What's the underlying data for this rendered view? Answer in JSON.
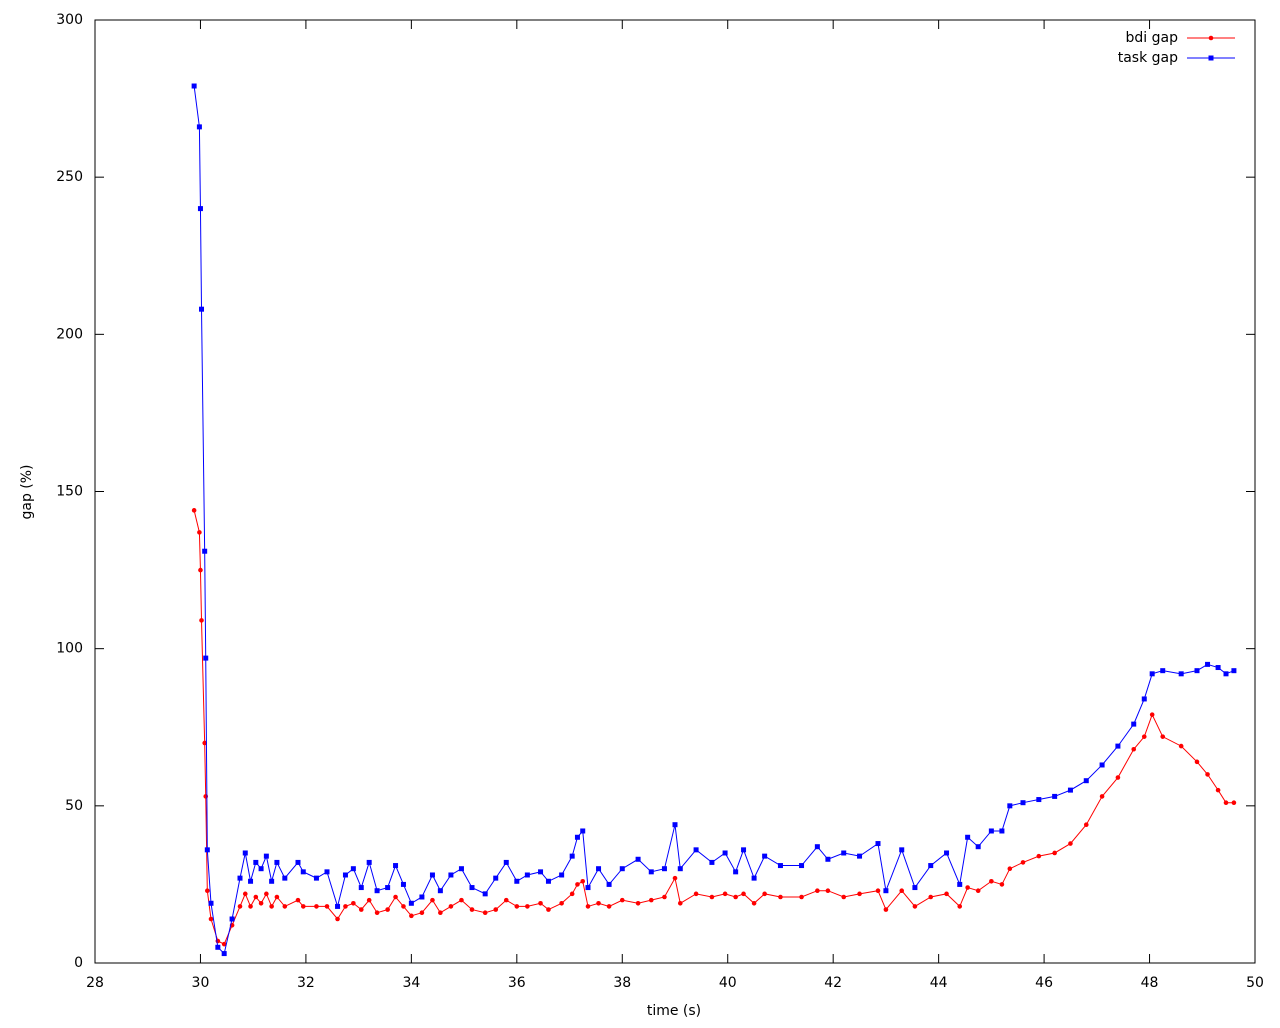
{
  "chart_data": {
    "type": "line",
    "xlabel": "time (s)",
    "ylabel": "gap (%)",
    "x": [
      29.88,
      29.98,
      30.0,
      30.02,
      30.08,
      30.1,
      30.13,
      30.2,
      30.33,
      30.45,
      30.6,
      30.75,
      30.85,
      30.95,
      31.05,
      31.15,
      31.25,
      31.35,
      31.45,
      31.6,
      31.85,
      31.95,
      32.2,
      32.4,
      32.6,
      32.75,
      32.9,
      33.05,
      33.2,
      33.35,
      33.55,
      33.7,
      33.85,
      34.0,
      34.2,
      34.4,
      34.55,
      34.75,
      34.95,
      35.15,
      35.4,
      35.6,
      35.8,
      36.0,
      36.2,
      36.45,
      36.6,
      36.85,
      37.05,
      37.15,
      37.25,
      37.35,
      37.55,
      37.75,
      38.0,
      38.3,
      38.55,
      38.8,
      39.0,
      39.1,
      39.4,
      39.7,
      39.95,
      40.15,
      40.3,
      40.5,
      40.7,
      41.0,
      41.4,
      41.7,
      41.9,
      42.2,
      42.5,
      42.85,
      43.0,
      43.3,
      43.55,
      43.85,
      44.15,
      44.4,
      44.55,
      44.75,
      45.0,
      45.2,
      45.35,
      45.6,
      45.9,
      46.2,
      46.5,
      46.8,
      47.1,
      47.4,
      47.7,
      47.9,
      48.05,
      48.25,
      48.6,
      48.9,
      49.1,
      49.3,
      49.45,
      49.6
    ],
    "series": [
      {
        "name": "bdi gap",
        "color": "#ff0000",
        "marker": "circle",
        "values": [
          144,
          137,
          125,
          109,
          70,
          53,
          23,
          14,
          7,
          6,
          12,
          18,
          22,
          18,
          21,
          19,
          22,
          18,
          21,
          18,
          20,
          18,
          18,
          18,
          14,
          18,
          19,
          17,
          20,
          16,
          17,
          21,
          18,
          15,
          16,
          20,
          16,
          18,
          20,
          17,
          16,
          17,
          20,
          18,
          18,
          19,
          17,
          19,
          22,
          25,
          26,
          18,
          19,
          18,
          20,
          19,
          20,
          21,
          27,
          19,
          22,
          21,
          22,
          21,
          22,
          19,
          22,
          21,
          21,
          23,
          23,
          21,
          22,
          23,
          17,
          23,
          18,
          21,
          22,
          18,
          24,
          23,
          26,
          25,
          30,
          32,
          34,
          35,
          38,
          44,
          53,
          59,
          68,
          72,
          79,
          72,
          69,
          64,
          60,
          55,
          51,
          51
        ]
      },
      {
        "name": "task gap",
        "color": "#0000ff",
        "marker": "square",
        "values": [
          279,
          266,
          240,
          208,
          131,
          97,
          36,
          19,
          5,
          3,
          14,
          27,
          35,
          26,
          32,
          30,
          34,
          26,
          32,
          27,
          32,
          29,
          27,
          29,
          18,
          28,
          30,
          24,
          32,
          23,
          24,
          31,
          25,
          19,
          21,
          28,
          23,
          28,
          30,
          24,
          22,
          27,
          32,
          26,
          28,
          29,
          26,
          28,
          34,
          40,
          42,
          24,
          30,
          25,
          30,
          33,
          29,
          30,
          44,
          30,
          36,
          32,
          35,
          29,
          36,
          27,
          34,
          31,
          31,
          37,
          33,
          35,
          34,
          38,
          23,
          36,
          24,
          31,
          35,
          25,
          40,
          37,
          42,
          42,
          50,
          51,
          52,
          53,
          55,
          58,
          63,
          69,
          76,
          84,
          92,
          93,
          92,
          93,
          95,
          94,
          92,
          93
        ]
      }
    ],
    "xlim": [
      28,
      50
    ],
    "xticks": [
      28,
      30,
      32,
      34,
      36,
      38,
      40,
      42,
      44,
      46,
      48,
      50
    ],
    "ylim": [
      0,
      300
    ],
    "yticks": [
      0,
      50,
      100,
      150,
      200,
      250,
      300
    ],
    "grid": false,
    "legend": "top right"
  }
}
